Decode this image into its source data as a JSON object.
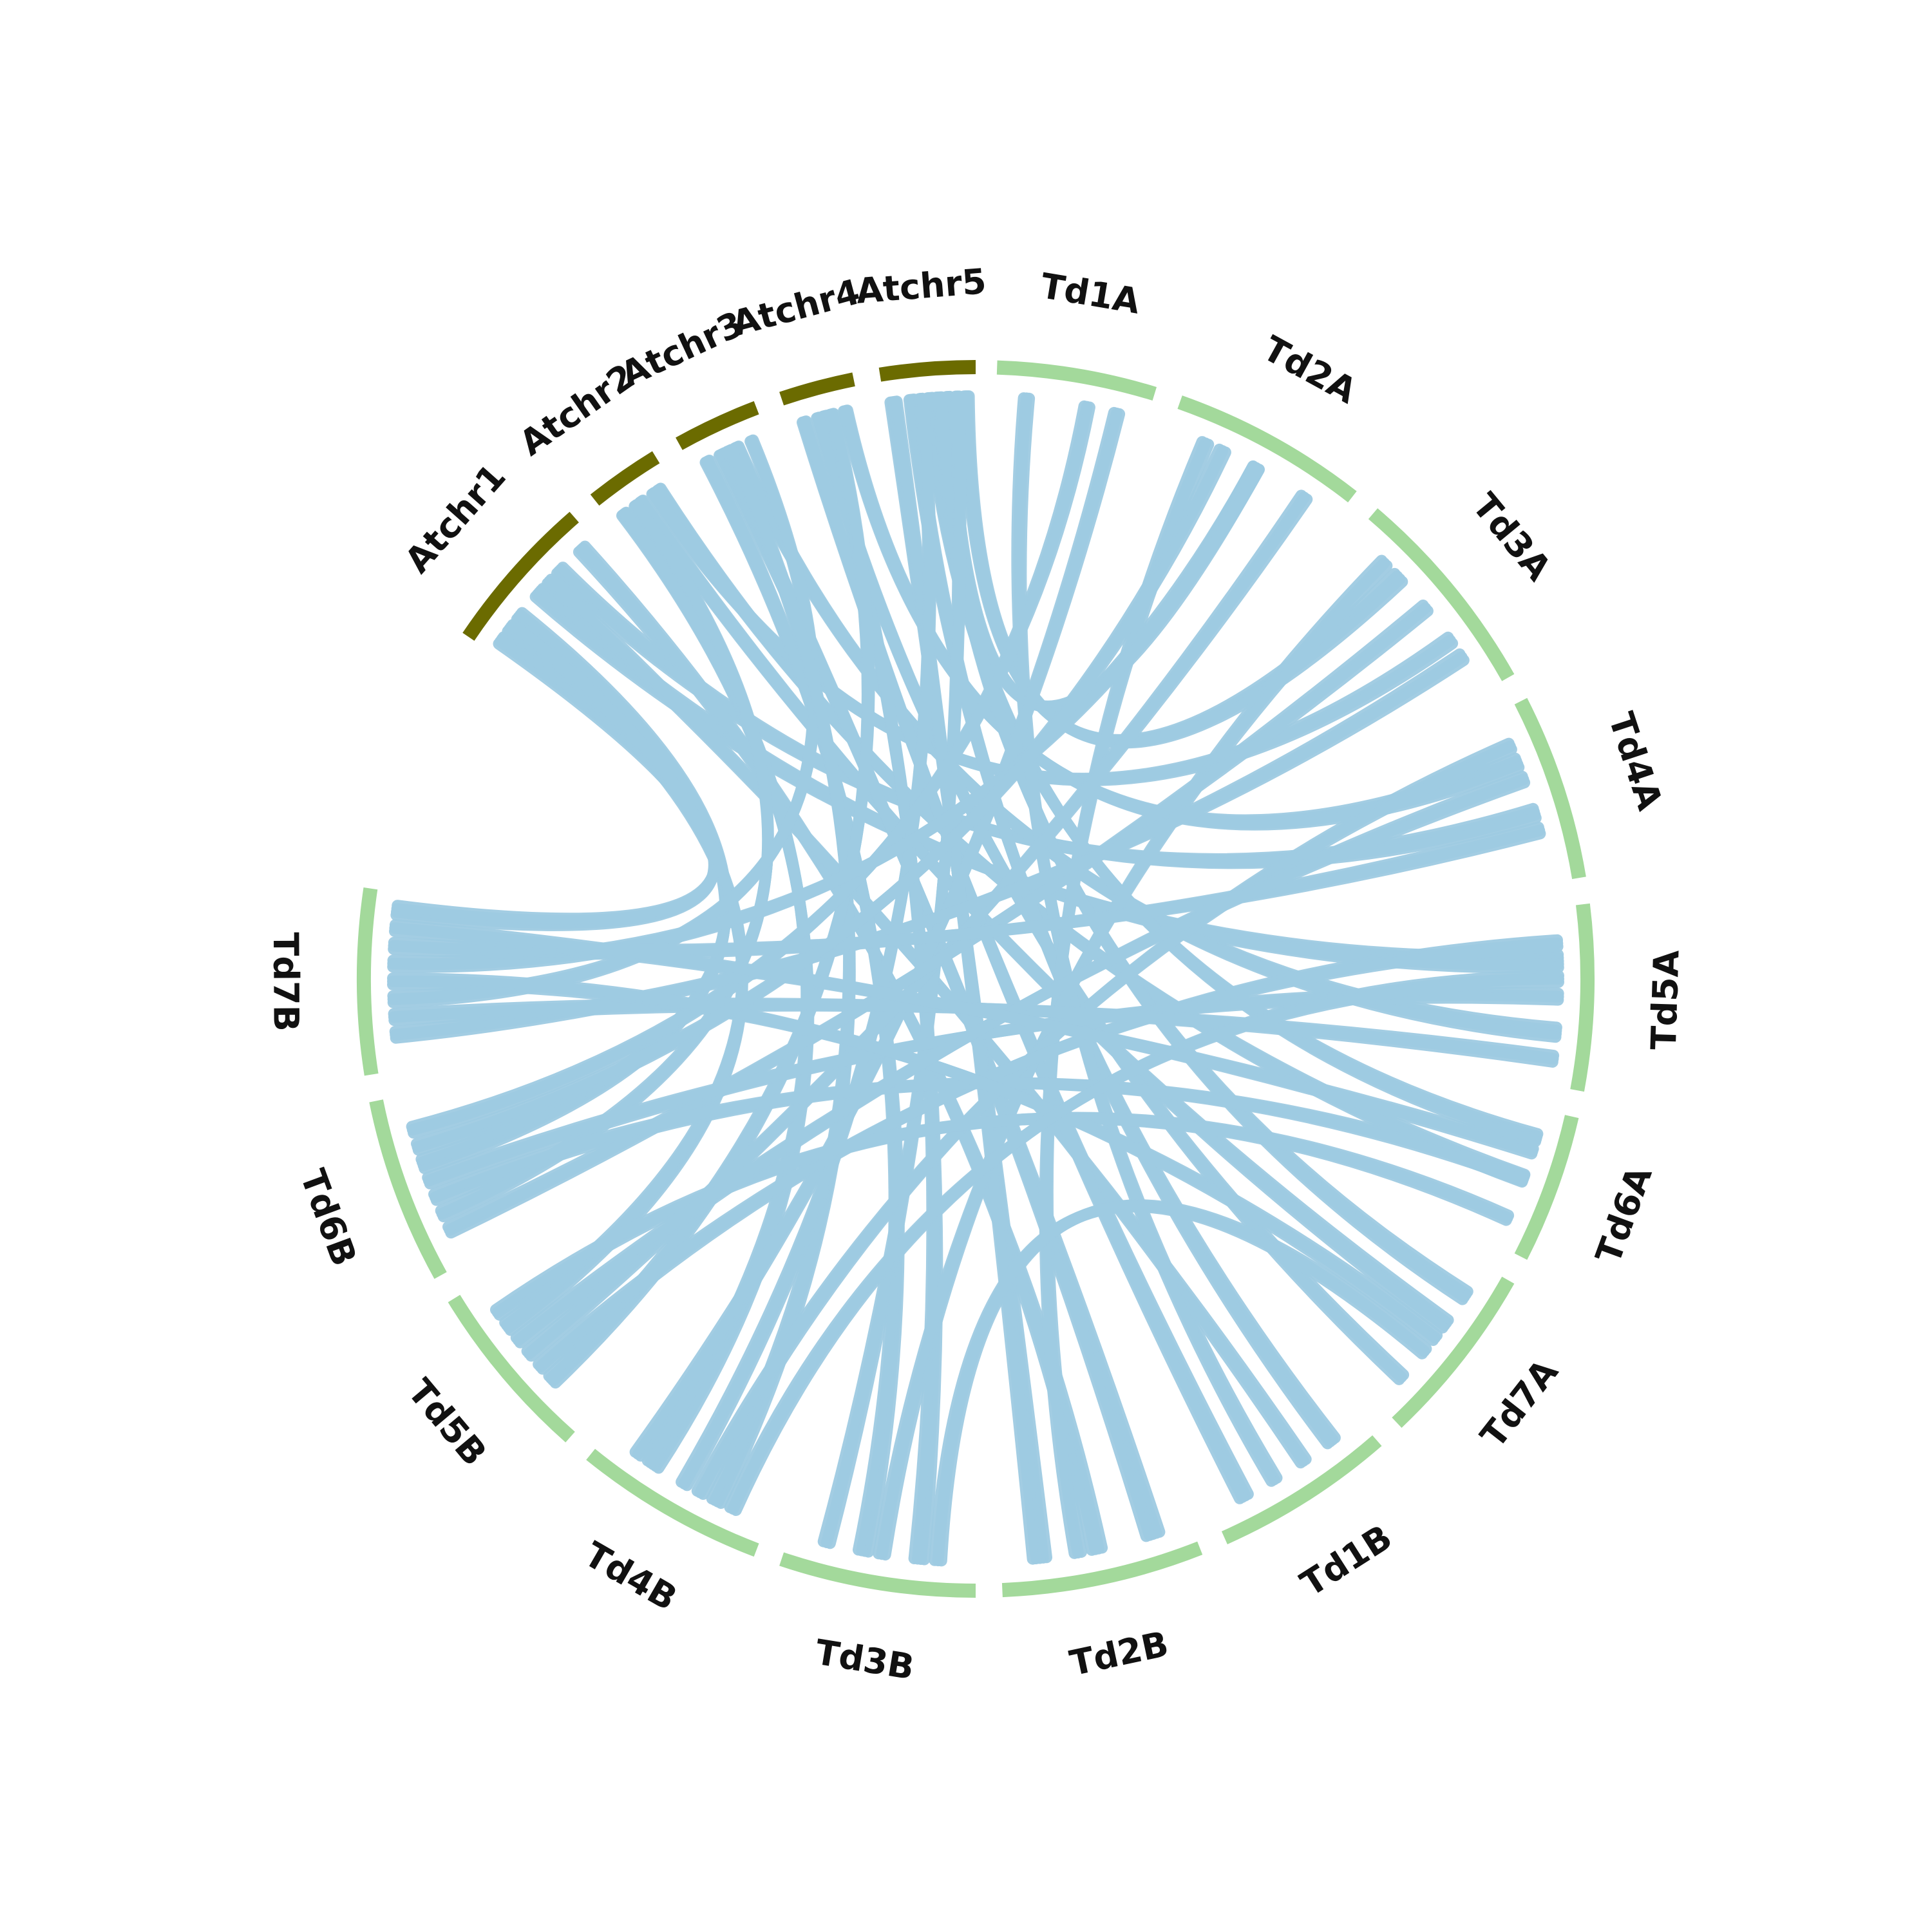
{
  "colors": {
    "at_chromosome": "#6b6b00",
    "td_chromosome": "#a3d99b",
    "link": "#9ecae1",
    "label": "#111111"
  },
  "segments": [
    {
      "id": "Atchr1",
      "label": "Atchr1",
      "group": "at_chromosome",
      "start_deg": 304.0,
      "end_deg": 319.0
    },
    {
      "id": "Atchr2",
      "label": "Atchr2",
      "group": "at_chromosome",
      "start_deg": 321.5,
      "end_deg": 328.5
    },
    {
      "id": "Atchr3",
      "label": "Atchr3",
      "group": "at_chromosome",
      "start_deg": 331.0,
      "end_deg": 339.0
    },
    {
      "id": "Atchr4",
      "label": "Atchr4",
      "group": "at_chromosome",
      "start_deg": 341.5,
      "end_deg": 348.5
    },
    {
      "id": "Atchr5",
      "label": "Atchr5",
      "group": "at_chromosome",
      "start_deg": 351.0,
      "end_deg": 360.0
    },
    {
      "id": "Td1A",
      "label": "Td1A",
      "group": "td_chromosome",
      "start_deg": 2.0,
      "end_deg": 17.0
    },
    {
      "id": "Td2A",
      "label": "Td2A",
      "group": "td_chromosome",
      "start_deg": 19.5,
      "end_deg": 38.0
    },
    {
      "id": "Td3A",
      "label": "Td3A",
      "group": "td_chromosome",
      "start_deg": 40.5,
      "end_deg": 60.5
    },
    {
      "id": "Td4A",
      "label": "Td4A",
      "group": "td_chromosome",
      "start_deg": 63.0,
      "end_deg": 80.5
    },
    {
      "id": "Td5A",
      "label": "Td5A",
      "group": "td_chromosome",
      "start_deg": 83.0,
      "end_deg": 100.5
    },
    {
      "id": "Td6A",
      "label": "Td6A",
      "group": "td_chromosome",
      "start_deg": 103.0,
      "end_deg": 117.0
    },
    {
      "id": "Td7A",
      "label": "Td7A",
      "group": "td_chromosome",
      "start_deg": 119.5,
      "end_deg": 136.5
    },
    {
      "id": "Td1B",
      "label": "Td1B",
      "group": "td_chromosome",
      "start_deg": 139.0,
      "end_deg": 156.0
    },
    {
      "id": "Td2B",
      "label": "Td2B",
      "group": "td_chromosome",
      "start_deg": 158.5,
      "end_deg": 177.5
    },
    {
      "id": "Td3B",
      "label": "Td3B",
      "group": "td_chromosome",
      "start_deg": 180.0,
      "end_deg": 198.5
    },
    {
      "id": "Td4B",
      "label": "Td4B",
      "group": "td_chromosome",
      "start_deg": 201.0,
      "end_deg": 219.0
    },
    {
      "id": "Td5B",
      "label": "Td5B",
      "group": "td_chromosome",
      "start_deg": 221.5,
      "end_deg": 238.5
    },
    {
      "id": "Td6B",
      "label": "Td6B",
      "group": "td_chromosome",
      "start_deg": 241.0,
      "end_deg": 258.5
    },
    {
      "id": "Td7B",
      "label": "Td7B",
      "group": "td_chromosome",
      "start_deg": 261.0,
      "end_deg": 278.5
    }
  ],
  "links": [
    {
      "from": "Atchr1",
      "from_pos": 0.1,
      "to": "Td7B",
      "to_pos": 0.9,
      "bundle": 4
    },
    {
      "from": "Atchr1",
      "from_pos": 0.3,
      "to": "Td6B",
      "to_pos": 0.6,
      "bundle": 4
    },
    {
      "from": "Atchr1",
      "from_pos": 0.5,
      "to": "Td5A",
      "to_pos": 0.3,
      "bundle": 5
    },
    {
      "from": "Atchr1",
      "from_pos": 0.7,
      "to": "Td4A",
      "to_pos": 0.6,
      "bundle": 4
    },
    {
      "from": "Atchr1",
      "from_pos": 0.9,
      "to": "Td2B",
      "to_pos": 0.5,
      "bundle": 4
    },
    {
      "from": "Atchr1",
      "from_pos": 0.2,
      "to": "Td5B",
      "to_pos": 0.7,
      "bundle": 4
    },
    {
      "from": "Atchr1",
      "from_pos": 0.6,
      "to": "Td1B",
      "to_pos": 0.4,
      "bundle": 3
    },
    {
      "from": "Atchr2",
      "from_pos": 0.2,
      "to": "Td4B",
      "to_pos": 0.7,
      "bundle": 5
    },
    {
      "from": "Atchr2",
      "from_pos": 0.5,
      "to": "Td7A",
      "to_pos": 0.4,
      "bundle": 4
    },
    {
      "from": "Atchr2",
      "from_pos": 0.8,
      "to": "Td6A",
      "to_pos": 0.5,
      "bundle": 4
    },
    {
      "from": "Atchr2",
      "from_pos": 0.4,
      "to": "Td6B",
      "to_pos": 0.3,
      "bundle": 3
    },
    {
      "from": "Atchr2",
      "from_pos": 0.7,
      "to": "Td3A",
      "to_pos": 0.7,
      "bundle": 3
    },
    {
      "from": "Atchr3",
      "from_pos": 0.2,
      "to": "Td3B",
      "to_pos": 0.6,
      "bundle": 4
    },
    {
      "from": "Atchr3",
      "from_pos": 0.4,
      "to": "Td2B",
      "to_pos": 0.2,
      "bundle": 5
    },
    {
      "from": "Atchr3",
      "from_pos": 0.6,
      "to": "Td5A",
      "to_pos": 0.7,
      "bundle": 4
    },
    {
      "from": "Atchr3",
      "from_pos": 0.8,
      "to": "Td7B",
      "to_pos": 0.4,
      "bundle": 3
    },
    {
      "from": "Atchr3",
      "from_pos": 0.5,
      "to": "Td4B",
      "to_pos": 0.3,
      "bundle": 4
    },
    {
      "from": "Atchr4",
      "from_pos": 0.2,
      "to": "Td1B",
      "to_pos": 0.8,
      "bundle": 4
    },
    {
      "from": "Atchr4",
      "from_pos": 0.5,
      "to": "Td3B",
      "to_pos": 0.3,
      "bundle": 4
    },
    {
      "from": "Atchr4",
      "from_pos": 0.8,
      "to": "Td4A",
      "to_pos": 0.3,
      "bundle": 4
    },
    {
      "from": "Atchr4",
      "from_pos": 0.4,
      "to": "Td7A",
      "to_pos": 0.8,
      "bundle": 3
    },
    {
      "from": "Atchr4",
      "from_pos": 0.6,
      "to": "Td5B",
      "to_pos": 0.3,
      "bundle": 4
    },
    {
      "from": "Atchr5",
      "from_pos": 0.1,
      "to": "Td2B",
      "to_pos": 0.8,
      "bundle": 5
    },
    {
      "from": "Atchr5",
      "from_pos": 0.3,
      "to": "Td1B",
      "to_pos": 0.2,
      "bundle": 4
    },
    {
      "from": "Atchr5",
      "from_pos": 0.5,
      "to": "Td6A",
      "to_pos": 0.2,
      "bundle": 4
    },
    {
      "from": "Atchr5",
      "from_pos": 0.7,
      "to": "Td2A",
      "to_pos": 0.5,
      "bundle": 3
    },
    {
      "from": "Atchr5",
      "from_pos": 0.9,
      "to": "Td3A",
      "to_pos": 0.3,
      "bundle": 4
    },
    {
      "from": "Atchr5",
      "from_pos": 0.6,
      "to": "Td7A",
      "to_pos": 0.2,
      "bundle": 4
    },
    {
      "from": "Atchr5",
      "from_pos": 0.8,
      "to": "Td3B",
      "to_pos": 0.8,
      "bundle": 3
    },
    {
      "from": "Atchr5",
      "from_pos": 0.4,
      "to": "Td4B",
      "to_pos": 0.5,
      "bundle": 3
    },
    {
      "from": "Td1A",
      "from_pos": 0.2,
      "to": "Td1B",
      "to_pos": 0.6,
      "bundle": 3
    },
    {
      "from": "Td1A",
      "from_pos": 0.6,
      "to": "Td6B",
      "to_pos": 0.8,
      "bundle": 3
    },
    {
      "from": "Td1A",
      "from_pos": 0.8,
      "to": "Td4B",
      "to_pos": 0.8,
      "bundle": 3
    },
    {
      "from": "Td2A",
      "from_pos": 0.2,
      "to": "Td2B",
      "to_pos": 0.6,
      "bundle": 3
    },
    {
      "from": "Td2A",
      "from_pos": 0.5,
      "to": "Td7B",
      "to_pos": 0.6,
      "bundle": 3
    },
    {
      "from": "Td2A",
      "from_pos": 0.8,
      "to": "Td5B",
      "to_pos": 0.5,
      "bundle": 3
    },
    {
      "from": "Td3A",
      "from_pos": 0.2,
      "to": "Td3B",
      "to_pos": 0.5,
      "bundle": 3
    },
    {
      "from": "Td3A",
      "from_pos": 0.5,
      "to": "Td6B",
      "to_pos": 0.2,
      "bundle": 3
    },
    {
      "from": "Td3A",
      "from_pos": 0.8,
      "to": "Td7B",
      "to_pos": 0.2,
      "bundle": 3
    },
    {
      "from": "Td4A",
      "from_pos": 0.2,
      "to": "Td4B",
      "to_pos": 0.4,
      "bundle": 3
    },
    {
      "from": "Td4A",
      "from_pos": 0.7,
      "to": "Td7B",
      "to_pos": 0.7,
      "bundle": 3
    },
    {
      "from": "Td5A",
      "from_pos": 0.2,
      "to": "Td5B",
      "to_pos": 0.4,
      "bundle": 3
    },
    {
      "from": "Td5A",
      "from_pos": 0.5,
      "to": "Td6B",
      "to_pos": 0.5,
      "bundle": 3
    },
    {
      "from": "Td5A",
      "from_pos": 0.85,
      "to": "Td7B",
      "to_pos": 0.3,
      "bundle": 3
    },
    {
      "from": "Td6A",
      "from_pos": 0.5,
      "to": "Td6B",
      "to_pos": 0.4,
      "bundle": 3
    },
    {
      "from": "Td6A",
      "from_pos": 0.8,
      "to": "Td5B",
      "to_pos": 0.8,
      "bundle": 3
    },
    {
      "from": "Td7A",
      "from_pos": 0.5,
      "to": "Td7B",
      "to_pos": 0.5,
      "bundle": 3
    },
    {
      "from": "Td7A",
      "from_pos": 0.6,
      "to": "Td3B",
      "to_pos": 0.2,
      "bundle": 3
    },
    {
      "from": "Td2A",
      "from_pos": 0.3,
      "to": "Td6B",
      "to_pos": 0.7,
      "bundle": 3
    },
    {
      "from": "Td4A",
      "from_pos": 0.4,
      "to": "Td5B",
      "to_pos": 0.6,
      "bundle": 3
    },
    {
      "from": "Td5A",
      "from_pos": 0.4,
      "to": "Td4B",
      "to_pos": 0.2,
      "bundle": 3
    },
    {
      "from": "Td6A",
      "from_pos": 0.3,
      "to": "Td7B",
      "to_pos": 0.8,
      "bundle": 3
    }
  ]
}
